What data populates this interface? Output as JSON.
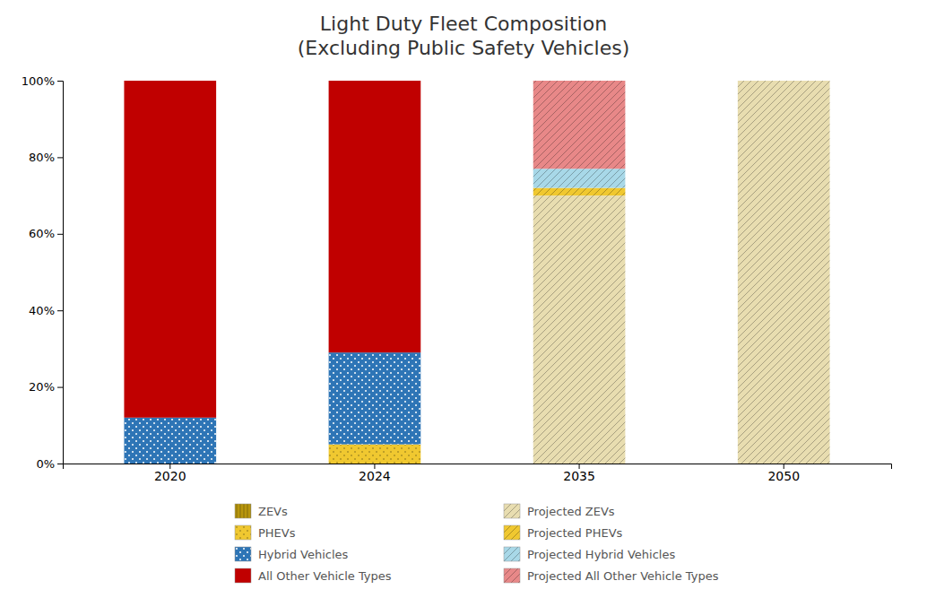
{
  "chart_data": {
    "type": "bar",
    "stacked": true,
    "title": "Light Duty Fleet Composition\n(Excluding Public Safety Vehicles)",
    "categories": [
      "2020",
      "2024",
      "2035",
      "2050"
    ],
    "series": [
      {
        "name": "ZEVs",
        "color": "#b8960c",
        "values": [
          0.0,
          0.0,
          0.0,
          0.0
        ]
      },
      {
        "name": "PHEVs",
        "color": "#f0c830",
        "values": [
          0.0,
          0.05,
          0.0,
          0.0
        ]
      },
      {
        "name": "Hybrid Vehicles",
        "color": "#2e75b6",
        "values": [
          0.12,
          0.24,
          0.0,
          0.0
        ]
      },
      {
        "name": "All Other Vehicle Types",
        "color": "#c00000",
        "values": [
          0.88,
          0.71,
          0.0,
          0.0
        ]
      },
      {
        "name": "Projected ZEVs",
        "color": "#e8ddb0",
        "values": [
          0.0,
          0.0,
          0.7,
          1.0
        ]
      },
      {
        "name": "Projected PHEVs",
        "color": "#f0c830",
        "values": [
          0.0,
          0.0,
          0.02,
          0.0
        ]
      },
      {
        "name": "Projected Hybrid Vehicles",
        "color": "#a8d8e8",
        "values": [
          0.0,
          0.0,
          0.05,
          0.0
        ]
      },
      {
        "name": "Projected All Other Vehicle Types",
        "color": "#e88888",
        "values": [
          0.0,
          0.0,
          0.23,
          0.0
        ]
      }
    ],
    "ylim": [
      0,
      1.0
    ],
    "yticks": [
      {
        "value": 0.0,
        "label": "0%"
      },
      {
        "value": 0.2,
        "label": "20%"
      },
      {
        "value": 0.4,
        "label": "40%"
      },
      {
        "value": 0.6,
        "label": "60%"
      },
      {
        "value": 0.8,
        "label": "80%"
      },
      {
        "value": 1.0,
        "label": "100%"
      }
    ],
    "grid": false
  }
}
